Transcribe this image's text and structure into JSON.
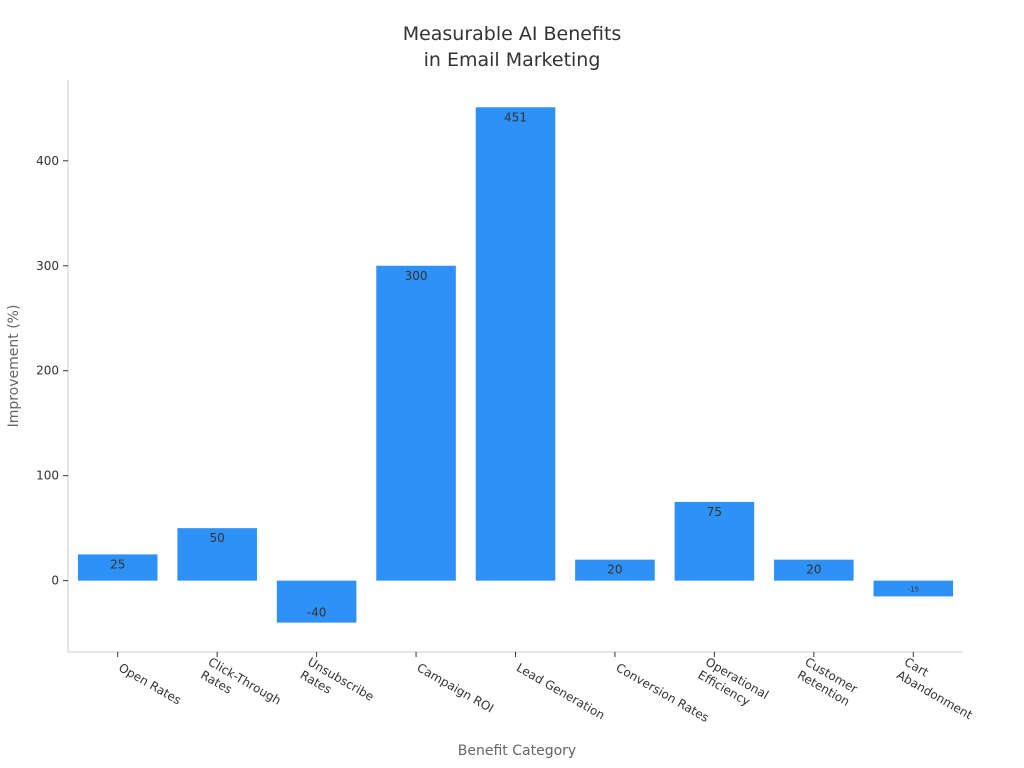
{
  "chart_data": {
    "type": "bar",
    "title": "Measurable AI Benefits\nin Email Marketing",
    "x_label": "Benefit Category",
    "y_label": "Improvement (%)",
    "categories": [
      "Open Rates",
      "Click-Through\nRates",
      "Unsubscribe\nRates",
      "Campaign ROI",
      "Lead Generation",
      "Conversion Rates",
      "Operational\nEfficiency",
      "Customer\nRetention",
      "Cart\nAbandonment"
    ],
    "values": [
      25,
      50,
      -40,
      300,
      451,
      20,
      75,
      20,
      -15
    ],
    "color": "#2e91f7",
    "ylim": [
      -68,
      477
    ],
    "yticks": [
      0,
      100,
      200,
      300,
      400
    ],
    "grid": false
  }
}
